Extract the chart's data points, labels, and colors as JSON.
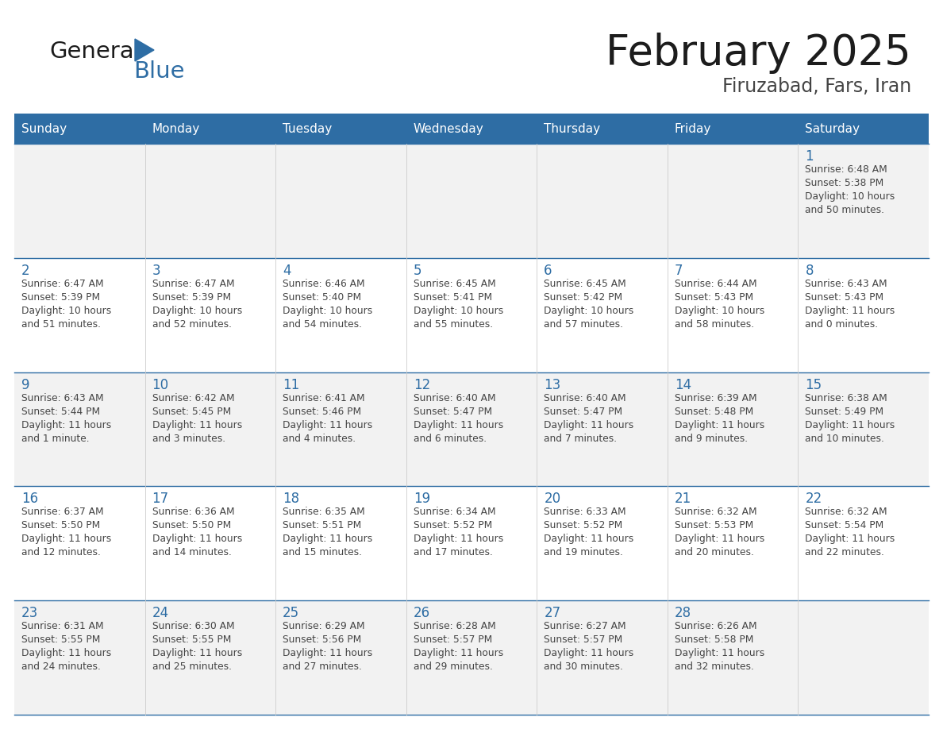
{
  "title": "February 2025",
  "subtitle": "Firuzabad, Fars, Iran",
  "days_of_week": [
    "Sunday",
    "Monday",
    "Tuesday",
    "Wednesday",
    "Thursday",
    "Friday",
    "Saturday"
  ],
  "header_bg": "#2E6DA4",
  "header_text_color": "#FFFFFF",
  "cell_bg_light": "#F2F2F2",
  "cell_bg_white": "#FFFFFF",
  "separator_color": "#2E6DA4",
  "text_color": "#444444",
  "day_num_color": "#2E6DA4",
  "background_color": "#FFFFFF",
  "calendar_data": [
    [
      null,
      null,
      null,
      null,
      null,
      null,
      {
        "day": 1,
        "sunrise": "6:48 AM",
        "sunset": "5:38 PM",
        "daylight_line1": "Daylight: 10 hours",
        "daylight_line2": "and 50 minutes."
      }
    ],
    [
      {
        "day": 2,
        "sunrise": "6:47 AM",
        "sunset": "5:39 PM",
        "daylight_line1": "Daylight: 10 hours",
        "daylight_line2": "and 51 minutes."
      },
      {
        "day": 3,
        "sunrise": "6:47 AM",
        "sunset": "5:39 PM",
        "daylight_line1": "Daylight: 10 hours",
        "daylight_line2": "and 52 minutes."
      },
      {
        "day": 4,
        "sunrise": "6:46 AM",
        "sunset": "5:40 PM",
        "daylight_line1": "Daylight: 10 hours",
        "daylight_line2": "and 54 minutes."
      },
      {
        "day": 5,
        "sunrise": "6:45 AM",
        "sunset": "5:41 PM",
        "daylight_line1": "Daylight: 10 hours",
        "daylight_line2": "and 55 minutes."
      },
      {
        "day": 6,
        "sunrise": "6:45 AM",
        "sunset": "5:42 PM",
        "daylight_line1": "Daylight: 10 hours",
        "daylight_line2": "and 57 minutes."
      },
      {
        "day": 7,
        "sunrise": "6:44 AM",
        "sunset": "5:43 PM",
        "daylight_line1": "Daylight: 10 hours",
        "daylight_line2": "and 58 minutes."
      },
      {
        "day": 8,
        "sunrise": "6:43 AM",
        "sunset": "5:43 PM",
        "daylight_line1": "Daylight: 11 hours",
        "daylight_line2": "and 0 minutes."
      }
    ],
    [
      {
        "day": 9,
        "sunrise": "6:43 AM",
        "sunset": "5:44 PM",
        "daylight_line1": "Daylight: 11 hours",
        "daylight_line2": "and 1 minute."
      },
      {
        "day": 10,
        "sunrise": "6:42 AM",
        "sunset": "5:45 PM",
        "daylight_line1": "Daylight: 11 hours",
        "daylight_line2": "and 3 minutes."
      },
      {
        "day": 11,
        "sunrise": "6:41 AM",
        "sunset": "5:46 PM",
        "daylight_line1": "Daylight: 11 hours",
        "daylight_line2": "and 4 minutes."
      },
      {
        "day": 12,
        "sunrise": "6:40 AM",
        "sunset": "5:47 PM",
        "daylight_line1": "Daylight: 11 hours",
        "daylight_line2": "and 6 minutes."
      },
      {
        "day": 13,
        "sunrise": "6:40 AM",
        "sunset": "5:47 PM",
        "daylight_line1": "Daylight: 11 hours",
        "daylight_line2": "and 7 minutes."
      },
      {
        "day": 14,
        "sunrise": "6:39 AM",
        "sunset": "5:48 PM",
        "daylight_line1": "Daylight: 11 hours",
        "daylight_line2": "and 9 minutes."
      },
      {
        "day": 15,
        "sunrise": "6:38 AM",
        "sunset": "5:49 PM",
        "daylight_line1": "Daylight: 11 hours",
        "daylight_line2": "and 10 minutes."
      }
    ],
    [
      {
        "day": 16,
        "sunrise": "6:37 AM",
        "sunset": "5:50 PM",
        "daylight_line1": "Daylight: 11 hours",
        "daylight_line2": "and 12 minutes."
      },
      {
        "day": 17,
        "sunrise": "6:36 AM",
        "sunset": "5:50 PM",
        "daylight_line1": "Daylight: 11 hours",
        "daylight_line2": "and 14 minutes."
      },
      {
        "day": 18,
        "sunrise": "6:35 AM",
        "sunset": "5:51 PM",
        "daylight_line1": "Daylight: 11 hours",
        "daylight_line2": "and 15 minutes."
      },
      {
        "day": 19,
        "sunrise": "6:34 AM",
        "sunset": "5:52 PM",
        "daylight_line1": "Daylight: 11 hours",
        "daylight_line2": "and 17 minutes."
      },
      {
        "day": 20,
        "sunrise": "6:33 AM",
        "sunset": "5:52 PM",
        "daylight_line1": "Daylight: 11 hours",
        "daylight_line2": "and 19 minutes."
      },
      {
        "day": 21,
        "sunrise": "6:32 AM",
        "sunset": "5:53 PM",
        "daylight_line1": "Daylight: 11 hours",
        "daylight_line2": "and 20 minutes."
      },
      {
        "day": 22,
        "sunrise": "6:32 AM",
        "sunset": "5:54 PM",
        "daylight_line1": "Daylight: 11 hours",
        "daylight_line2": "and 22 minutes."
      }
    ],
    [
      {
        "day": 23,
        "sunrise": "6:31 AM",
        "sunset": "5:55 PM",
        "daylight_line1": "Daylight: 11 hours",
        "daylight_line2": "and 24 minutes."
      },
      {
        "day": 24,
        "sunrise": "6:30 AM",
        "sunset": "5:55 PM",
        "daylight_line1": "Daylight: 11 hours",
        "daylight_line2": "and 25 minutes."
      },
      {
        "day": 25,
        "sunrise": "6:29 AM",
        "sunset": "5:56 PM",
        "daylight_line1": "Daylight: 11 hours",
        "daylight_line2": "and 27 minutes."
      },
      {
        "day": 26,
        "sunrise": "6:28 AM",
        "sunset": "5:57 PM",
        "daylight_line1": "Daylight: 11 hours",
        "daylight_line2": "and 29 minutes."
      },
      {
        "day": 27,
        "sunrise": "6:27 AM",
        "sunset": "5:57 PM",
        "daylight_line1": "Daylight: 11 hours",
        "daylight_line2": "and 30 minutes."
      },
      {
        "day": 28,
        "sunrise": "6:26 AM",
        "sunset": "5:58 PM",
        "daylight_line1": "Daylight: 11 hours",
        "daylight_line2": "and 32 minutes."
      },
      null
    ]
  ]
}
